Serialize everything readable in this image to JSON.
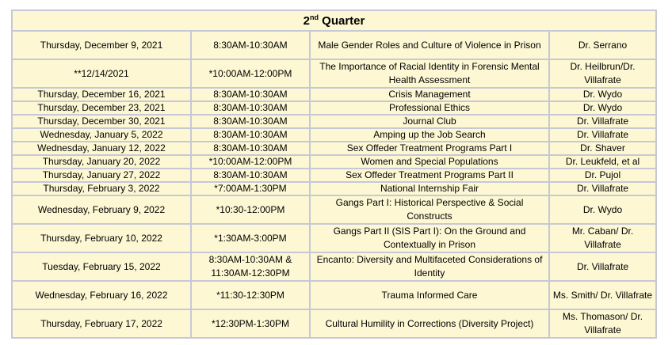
{
  "header": {
    "ordinal": "2",
    "suffix": "nd",
    "word": "Quarter"
  },
  "rows": [
    {
      "date": "Thursday, December 9, 2021",
      "time": "8:30AM-10:30AM",
      "topic": "Male Gender Roles and Culture of Violence in Prison",
      "presenter": "Dr. Serrano"
    },
    {
      "date": "**12/14/2021",
      "time": "*10:00AM-12:00PM",
      "topic": "The Importance of Racial Identity in Forensic Mental Health Assessment",
      "presenter": "Dr. Heilbrun/Dr. Villafrate"
    },
    {
      "date": "Thursday, December 16, 2021",
      "time": "8:30AM-10:30AM",
      "topic": "Crisis Management",
      "presenter": "Dr. Wydo"
    },
    {
      "date": "Thursday, December 23, 2021",
      "time": "8:30AM-10:30AM",
      "topic": "Professional Ethics",
      "presenter": "Dr. Wydo"
    },
    {
      "date": "Thursday, December 30, 2021",
      "time": "8:30AM-10:30AM",
      "topic": "Journal Club",
      "presenter": "Dr. Villafrate"
    },
    {
      "date": "Wednesday, January 5, 2022",
      "time": "8:30AM-10:30AM",
      "topic": "Amping up the Job Search",
      "presenter": "Dr. Villafrate"
    },
    {
      "date": "Wednesday, January 12, 2022",
      "time": "8:30AM-10:30AM",
      "topic": "Sex Offeder Treatment Programs Part I",
      "presenter": "Dr. Shaver"
    },
    {
      "date": "Thursday, January 20, 2022",
      "time": "*10:00AM-12:00PM",
      "topic": "Women and Special Populations",
      "presenter": "Dr. Leukfeld,  et al"
    },
    {
      "date": "Thursday, January 27, 2022",
      "time": "8:30AM-10:30AM",
      "topic": "Sex Offeder Treatment Programs Part II",
      "presenter": "Dr. Pujol"
    },
    {
      "date": "Thursday, February 3, 2022",
      "time": "*7:00AM-1:30PM",
      "topic": "National Internship Fair",
      "presenter": "Dr. Villafrate"
    },
    {
      "date": "Wednesday, February 9, 2022",
      "time": "*10:30-12:00PM",
      "topic": "Gangs Part I: Historical Perspective & Social Constructs",
      "presenter": "Dr. Wydo"
    },
    {
      "date": "Thursday, February 10, 2022",
      "time": "*1:30AM-3:00PM",
      "topic": "Gangs Part II (SIS Part I): On the Ground and Contextually in Prison",
      "presenter": "Mr. Caban/ Dr. Villafrate"
    },
    {
      "date": "Tuesday, February 15, 2022",
      "time": "8:30AM-10:30AM & 11:30AM-12:30PM",
      "topic": "Encanto: Diversity and Multifaceted Considerations of Identity",
      "presenter": "Dr. Villafrate"
    },
    {
      "date": "Wednesday, February 16, 2022",
      "time": "*11:30-12:30PM",
      "topic": "Trauma Informed Care",
      "presenter": "Ms. Smith/ Dr. Villafrate"
    },
    {
      "date": "Thursday, February 17, 2022",
      "time": "*12:30PM-1:30PM",
      "topic": "Cultural Humility in Corrections (Diversity Project)",
      "presenter": "Ms. Thomason/ Dr. Villafrate"
    }
  ]
}
